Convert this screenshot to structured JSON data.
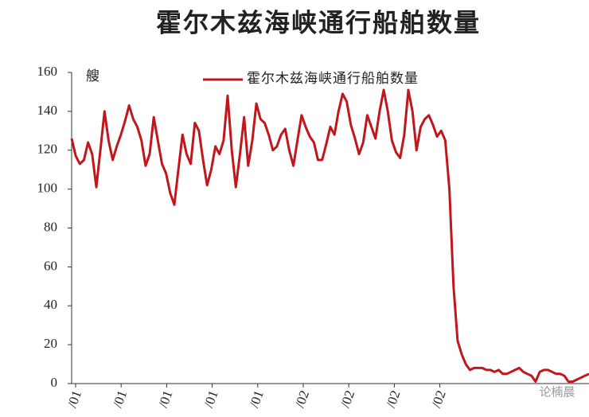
{
  "chart_data": {
    "type": "line",
    "title": "霍尔木兹海峡通行船舶数量",
    "unit": "艘",
    "series": [
      {
        "name": "霍尔木兹海峡通行船舶数量",
        "color": "#c0161c",
        "values": [
          126,
          117,
          113,
          115,
          124,
          118,
          101,
          120,
          140,
          125,
          115,
          122,
          128,
          135,
          143,
          136,
          132,
          125,
          112,
          118,
          137,
          125,
          113,
          108,
          98,
          92,
          110,
          128,
          118,
          113,
          134,
          130,
          115,
          102,
          110,
          122,
          118,
          125,
          148,
          120,
          101,
          118,
          137,
          112,
          125,
          144,
          136,
          134,
          128,
          120,
          122,
          128,
          131,
          120,
          112,
          125,
          138,
          132,
          127,
          124,
          115,
          115,
          123,
          132,
          128,
          140,
          149,
          145,
          133,
          126,
          118,
          124,
          138,
          132,
          126,
          140,
          151,
          140,
          125,
          119,
          116,
          128,
          151,
          140,
          120,
          132,
          136,
          138,
          133,
          127,
          130,
          125,
          100,
          50,
          22,
          15,
          10,
          7,
          8,
          8,
          8,
          7,
          7,
          6,
          7,
          5,
          5,
          6,
          7,
          8,
          6,
          5,
          4,
          1,
          6,
          7,
          7,
          6,
          5,
          5,
          4,
          1,
          1,
          2,
          3,
          4,
          5
        ]
      }
    ],
    "x_tick_labels": [
      "/01",
      "/01",
      "/01",
      "/01",
      "/01",
      "/02",
      "/02",
      "/02",
      "/02"
    ],
    "ylim": [
      0,
      160
    ],
    "yticks": [
      0,
      20,
      40,
      60,
      80,
      100,
      120,
      140,
      160
    ],
    "watermark": "论楠晨"
  }
}
